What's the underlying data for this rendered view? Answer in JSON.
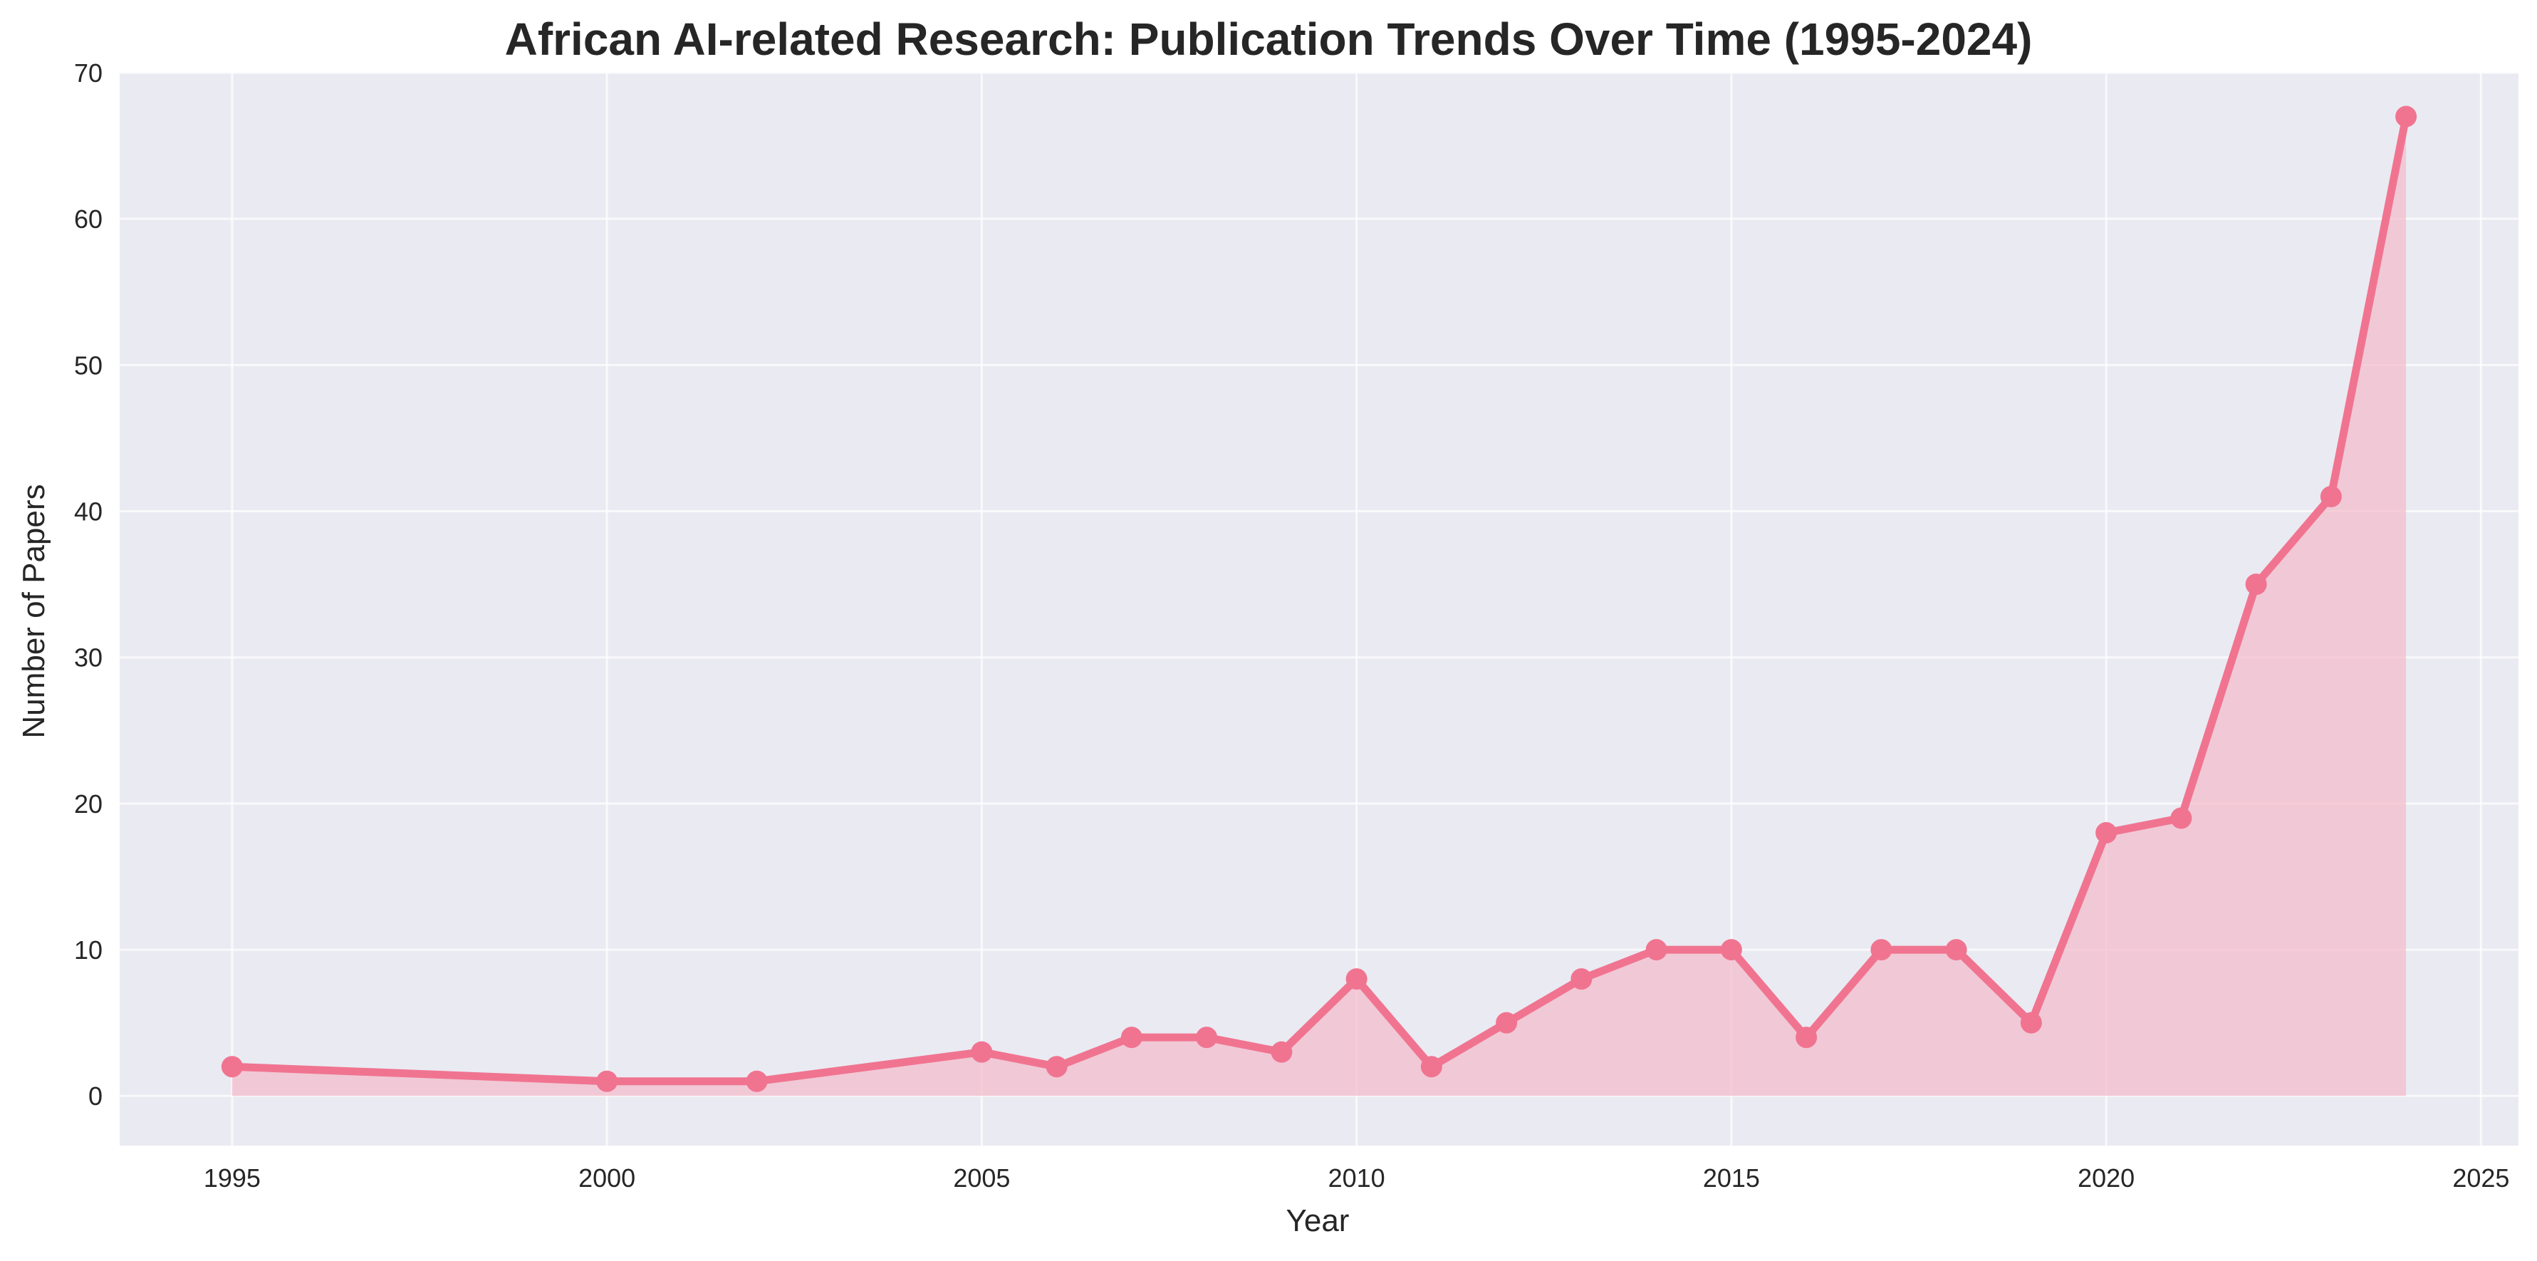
{
  "chart_data": {
    "type": "area",
    "title": "African AI-related Research: Publication Trends Over Time (1995-2024)",
    "xlabel": "Year",
    "ylabel": "Number of Papers",
    "xlim": [
      1993.5,
      2025.5
    ],
    "ylim": [
      -3.4,
      70
    ],
    "xticks": [
      1995,
      2000,
      2005,
      2010,
      2015,
      2020,
      2025
    ],
    "yticks": [
      0,
      10,
      20,
      30,
      40,
      50,
      60,
      70
    ],
    "grid": true,
    "legend": "none",
    "colors": {
      "line": "#f07490",
      "fill": "#f3bccc",
      "background": "#eaeaf2",
      "grid": "#ffffff"
    },
    "series": [
      {
        "x": [
          1995,
          2000,
          2002,
          2005,
          2006,
          2007,
          2008,
          2009,
          2010,
          2011,
          2012,
          2013,
          2014,
          2015,
          2016,
          2017,
          2018,
          2019,
          2020,
          2021,
          2022,
          2023,
          2024
        ],
        "values": [
          2,
          1,
          1,
          3,
          2,
          4,
          4,
          3,
          8,
          2,
          5,
          8,
          10,
          10,
          4,
          10,
          10,
          5,
          18,
          19,
          35,
          41,
          67
        ]
      }
    ]
  }
}
